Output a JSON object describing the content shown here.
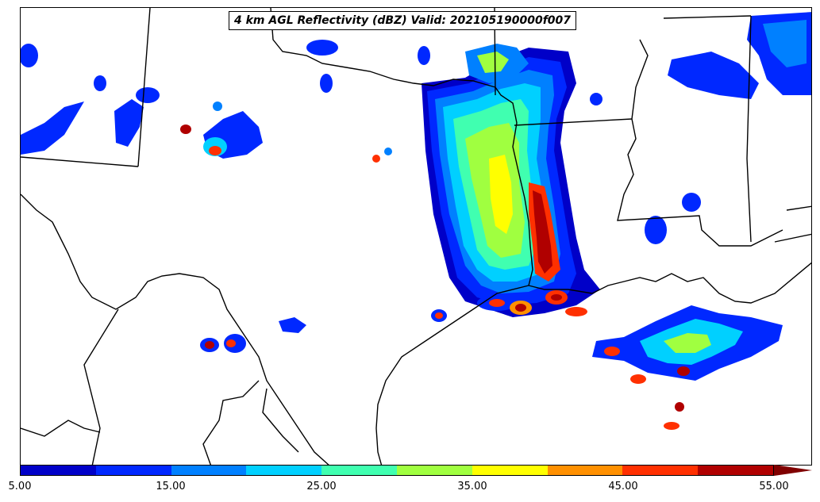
{
  "title": "4 km AGL Reflectivity (dBZ) Valid: 202105190000f007",
  "colorbar": {
    "ticks": [
      "5.00",
      "15.00",
      "25.00",
      "35.00",
      "45.00",
      "55.00"
    ],
    "colors": [
      "#0000c8",
      "#0028ff",
      "#0080ff",
      "#00d0ff",
      "#40ffb0",
      "#a0ff40",
      "#ffff00",
      "#ff9000",
      "#ff3000",
      "#b00000"
    ],
    "extend_color": "#800000"
  },
  "map": {
    "background": "#ffffff",
    "boundary_color": "#000000"
  }
}
